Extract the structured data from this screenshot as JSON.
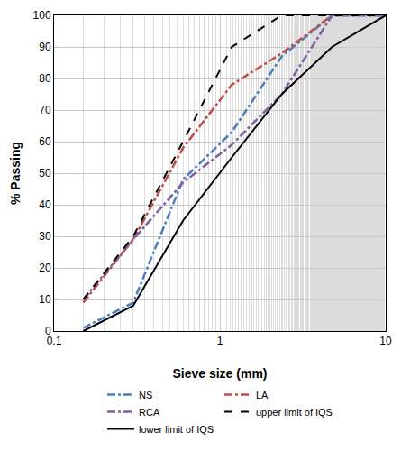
{
  "chart_data": {
    "type": "line",
    "x_label": "Sieve size (mm)",
    "y_label": "% Passing",
    "x": [
      0.15,
      0.3,
      0.6,
      1.18,
      2.36,
      4.75,
      10
    ],
    "series": [
      {
        "name": "NS",
        "color": "#4a7ebb",
        "line_style": "dashdot",
        "values": [
          1,
          9,
          48,
          63,
          87,
          100,
          100
        ]
      },
      {
        "name": "LA",
        "color": "#be4b48",
        "line_style": "dashdot",
        "values": [
          9,
          29,
          58,
          78,
          88,
          100,
          100
        ]
      },
      {
        "name": "RCA",
        "color": "#7d5fa0",
        "line_style": "dashdot",
        "values": [
          10,
          29,
          47,
          59,
          75,
          100,
          100
        ]
      },
      {
        "name": "upper limit of IQS",
        "color": "#000000",
        "line_style": "dash",
        "values": [
          10,
          30,
          60,
          90,
          100,
          100,
          100
        ]
      },
      {
        "name": "lower limit of IQS",
        "color": "#000000",
        "line_style": "solid",
        "values": [
          0,
          8,
          35,
          55,
          75,
          90,
          100
        ]
      }
    ],
    "log": "x",
    "xlim": [
      0.1,
      10
    ],
    "xticks": [
      0.1,
      1,
      10
    ],
    "ylim": [
      0,
      100
    ],
    "yticks": [
      0,
      10,
      20,
      30,
      40,
      50,
      60,
      70,
      80,
      90,
      100
    ],
    "grid": true,
    "legend": "bottom"
  }
}
